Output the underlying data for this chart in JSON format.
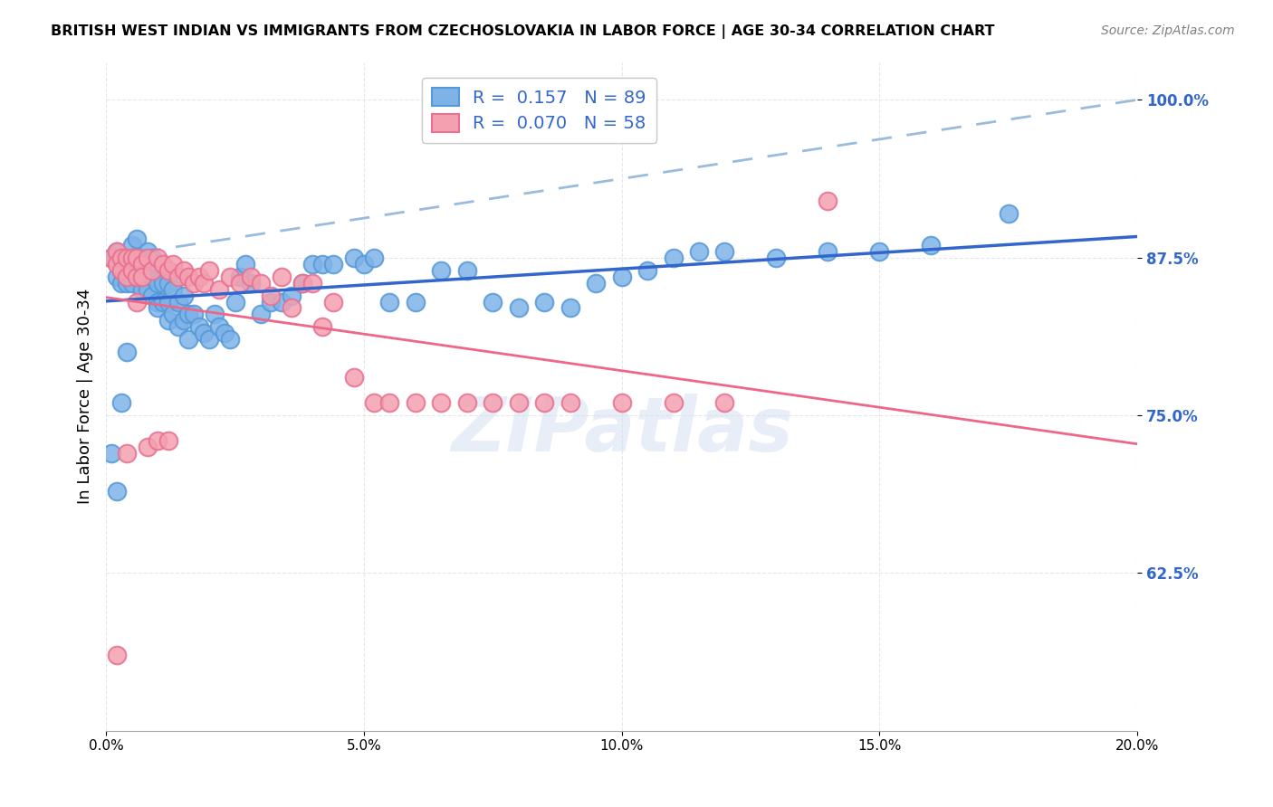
{
  "title": "BRITISH WEST INDIAN VS IMMIGRANTS FROM CZECHOSLOVAKIA IN LABOR FORCE | AGE 30-34 CORRELATION CHART",
  "source": "Source: ZipAtlas.com",
  "xlabel": "",
  "ylabel": "In Labor Force | Age 30-34",
  "xlim": [
    0.0,
    0.2
  ],
  "ylim": [
    0.5,
    1.03
  ],
  "yticks": [
    0.625,
    0.75,
    0.875,
    1.0
  ],
  "ytick_labels": [
    "62.5%",
    "75.0%",
    "87.5%",
    "100.0%"
  ],
  "xticks": [
    0.0,
    0.05,
    0.1,
    0.15,
    0.2
  ],
  "xtick_labels": [
    "0.0%",
    "5.0%",
    "10.0%",
    "15.0%",
    "20.0%"
  ],
  "blue_color": "#7EB3E8",
  "pink_color": "#F4A0B0",
  "blue_edge": "#5599D8",
  "pink_edge": "#E87090",
  "trend_blue": "#3366CC",
  "trend_pink": "#EE6688",
  "dashed_blue": "#99BBDD",
  "legend_R_blue": "0.157",
  "legend_N_blue": "89",
  "legend_R_pink": "0.070",
  "legend_N_pink": "58",
  "blue_scatter_x": [
    0.001,
    0.002,
    0.002,
    0.003,
    0.003,
    0.003,
    0.004,
    0.004,
    0.004,
    0.004,
    0.005,
    0.005,
    0.005,
    0.005,
    0.006,
    0.006,
    0.006,
    0.007,
    0.007,
    0.007,
    0.008,
    0.008,
    0.008,
    0.009,
    0.009,
    0.009,
    0.01,
    0.01,
    0.01,
    0.01,
    0.011,
    0.011,
    0.012,
    0.012,
    0.012,
    0.013,
    0.013,
    0.014,
    0.014,
    0.015,
    0.015,
    0.016,
    0.016,
    0.017,
    0.018,
    0.019,
    0.02,
    0.021,
    0.022,
    0.023,
    0.024,
    0.025,
    0.026,
    0.027,
    0.028,
    0.03,
    0.032,
    0.034,
    0.036,
    0.038,
    0.04,
    0.042,
    0.044,
    0.048,
    0.05,
    0.052,
    0.055,
    0.06,
    0.065,
    0.07,
    0.075,
    0.08,
    0.085,
    0.09,
    0.095,
    0.1,
    0.105,
    0.11,
    0.115,
    0.12,
    0.13,
    0.14,
    0.15,
    0.16,
    0.175,
    0.001,
    0.002,
    0.003,
    0.004
  ],
  "blue_scatter_y": [
    0.875,
    0.88,
    0.86,
    0.87,
    0.865,
    0.855,
    0.875,
    0.87,
    0.86,
    0.855,
    0.885,
    0.875,
    0.865,
    0.855,
    0.89,
    0.875,
    0.86,
    0.875,
    0.86,
    0.85,
    0.88,
    0.865,
    0.85,
    0.875,
    0.86,
    0.845,
    0.87,
    0.855,
    0.84,
    0.835,
    0.855,
    0.84,
    0.855,
    0.84,
    0.825,
    0.85,
    0.83,
    0.84,
    0.82,
    0.845,
    0.825,
    0.83,
    0.81,
    0.83,
    0.82,
    0.815,
    0.81,
    0.83,
    0.82,
    0.815,
    0.81,
    0.84,
    0.86,
    0.87,
    0.855,
    0.83,
    0.84,
    0.84,
    0.845,
    0.855,
    0.87,
    0.87,
    0.87,
    0.875,
    0.87,
    0.875,
    0.84,
    0.84,
    0.865,
    0.865,
    0.84,
    0.835,
    0.84,
    0.835,
    0.855,
    0.86,
    0.865,
    0.875,
    0.88,
    0.88,
    0.875,
    0.88,
    0.88,
    0.885,
    0.91,
    0.72,
    0.69,
    0.76,
    0.8
  ],
  "pink_scatter_x": [
    0.001,
    0.002,
    0.002,
    0.003,
    0.003,
    0.004,
    0.004,
    0.005,
    0.005,
    0.006,
    0.006,
    0.007,
    0.007,
    0.008,
    0.009,
    0.01,
    0.011,
    0.012,
    0.013,
    0.014,
    0.015,
    0.016,
    0.017,
    0.018,
    0.019,
    0.02,
    0.022,
    0.024,
    0.026,
    0.028,
    0.03,
    0.032,
    0.034,
    0.036,
    0.038,
    0.04,
    0.042,
    0.044,
    0.048,
    0.052,
    0.055,
    0.06,
    0.065,
    0.07,
    0.075,
    0.08,
    0.085,
    0.09,
    0.1,
    0.11,
    0.12,
    0.14,
    0.002,
    0.004,
    0.006,
    0.008,
    0.01,
    0.012
  ],
  "pink_scatter_y": [
    0.875,
    0.88,
    0.87,
    0.875,
    0.865,
    0.875,
    0.86,
    0.875,
    0.865,
    0.875,
    0.86,
    0.87,
    0.86,
    0.875,
    0.865,
    0.875,
    0.87,
    0.865,
    0.87,
    0.86,
    0.865,
    0.86,
    0.855,
    0.86,
    0.855,
    0.865,
    0.85,
    0.86,
    0.855,
    0.86,
    0.855,
    0.845,
    0.86,
    0.835,
    0.855,
    0.855,
    0.82,
    0.84,
    0.78,
    0.76,
    0.76,
    0.76,
    0.76,
    0.76,
    0.76,
    0.76,
    0.76,
    0.76,
    0.76,
    0.76,
    0.76,
    0.92,
    0.56,
    0.72,
    0.84,
    0.725,
    0.73,
    0.73
  ],
  "watermark": "ZIPatlas",
  "background_color": "#FFFFFF",
  "grid_color": "#DDDDDD"
}
